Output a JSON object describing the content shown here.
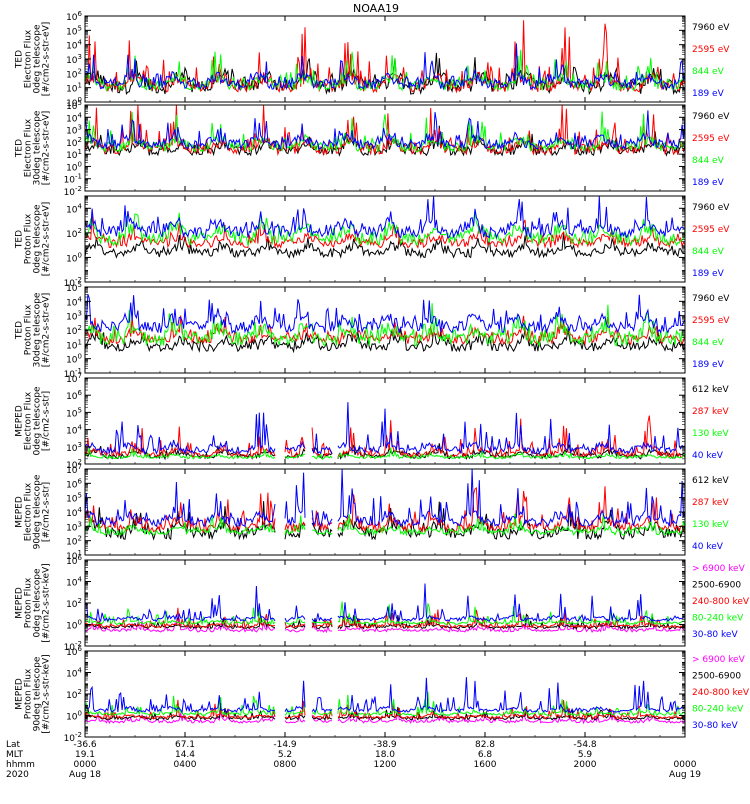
{
  "title": "NOAA19",
  "colors": {
    "black": "#000000",
    "red": "#ff0000",
    "green": "#00ff00",
    "blue": "#0000ff",
    "magenta": "#ff00ff"
  },
  "chart_data": {
    "type": "line",
    "title": "NOAA19",
    "x_axis": {
      "rows": [
        {
          "label": "Lat",
          "values": [
            "-36.6",
            "67.1",
            "-14.9",
            "-38.9",
            "82.8",
            "-54.8"
          ]
        },
        {
          "label": "MLT",
          "values": [
            "19.1",
            "14.4",
            "5.2",
            "18.0",
            "6.8",
            "5.9"
          ]
        },
        {
          "label": "hhmm",
          "values": [
            "0000",
            "0400",
            "0800",
            "1200",
            "1600",
            "2000",
            "0000"
          ]
        },
        {
          "label": "2020",
          "values": [
            "Aug 18",
            "",
            "",
            "",
            "",
            "",
            "Aug 19"
          ]
        }
      ],
      "xlim_hours": [
        0,
        24
      ],
      "tick_hours": [
        0,
        4,
        8,
        12,
        16,
        20,
        24
      ]
    },
    "panels": [
      {
        "ylabel": [
          "TED",
          "Electron Flux",
          "0deg telescope",
          "[#/cm2-s-str-eV]"
        ],
        "yexp_range": [
          0,
          6
        ],
        "tick_labels": [
          "10^0",
          "10^1",
          "10^2",
          "10^3",
          "10^4",
          "10^5",
          "10^6"
        ],
        "series": [
          {
            "name": "7960 eV",
            "color": "#000000",
            "base": 0.55,
            "spread": 1.3,
            "spike_max": 1.6
          },
          {
            "name": "2595 eV",
            "color": "#ff0000",
            "base": 0.7,
            "spread": 1.0,
            "spike_max": 4.2
          },
          {
            "name": "844 eV",
            "color": "#00ff00",
            "base": 0.8,
            "spread": 0.9,
            "spike_max": 2.0
          },
          {
            "name": "189 eV",
            "color": "#0000ff",
            "base": 0.9,
            "spread": 0.9,
            "spike_max": 2.0
          }
        ]
      },
      {
        "ylabel": [
          "TED",
          "Electron Flux",
          "30deg telescope",
          "[#/cm2-s-str-eV]"
        ],
        "yexp_range": [
          -2,
          5
        ],
        "tick_labels": [
          "10^-2",
          "10^-1",
          "10^0",
          "10^1",
          "10^2",
          "10^3",
          "10^4",
          "10^5"
        ],
        "series": [
          {
            "name": "7960 eV",
            "color": "#000000",
            "base": 0.9,
            "spread": 0.9,
            "spike_max": 1.4
          },
          {
            "name": "2595 eV",
            "color": "#ff0000",
            "base": 1.0,
            "spread": 1.0,
            "spike_max": 3.7
          },
          {
            "name": "844 eV",
            "color": "#00ff00",
            "base": 1.2,
            "spread": 1.0,
            "spike_max": 2.4
          },
          {
            "name": "189 eV",
            "color": "#0000ff",
            "base": 1.4,
            "spread": 1.0,
            "spike_max": 2.4
          }
        ]
      },
      {
        "ylabel": [
          "TED",
          "Proton Flux",
          "0deg telescope",
          "[#/cm2-s-str-eV]"
        ],
        "yexp_range": [
          -2,
          5
        ],
        "tick_labels": [
          "10^-2",
          "10^0",
          "10^2",
          "10^4"
        ],
        "major_ticks": [
          -2,
          0,
          2,
          4
        ],
        "series": [
          {
            "name": "7960 eV",
            "color": "#000000",
            "base": 0.0,
            "spread": 0.9,
            "spike_max": 1.0
          },
          {
            "name": "2595 eV",
            "color": "#ff0000",
            "base": 0.8,
            "spread": 0.9,
            "spike_max": 1.4
          },
          {
            "name": "844 eV",
            "color": "#00ff00",
            "base": 1.0,
            "spread": 1.4,
            "spike_max": 1.3
          },
          {
            "name": "189 eV",
            "color": "#0000ff",
            "base": 1.6,
            "spread": 1.2,
            "spike_max": 2.6
          }
        ]
      },
      {
        "ylabel": [
          "TED",
          "Proton Flux",
          "30deg telescope",
          "[#/cm2-s-str-eV]"
        ],
        "yexp_range": [
          -1,
          5
        ],
        "tick_labels": [
          "10^-1",
          "10^0",
          "10^1",
          "10^2",
          "10^3",
          "10^4",
          "10^5"
        ],
        "series": [
          {
            "name": "7960 eV",
            "color": "#000000",
            "base": 0.5,
            "spread": 0.8,
            "spike_max": 1.0
          },
          {
            "name": "2595 eV",
            "color": "#ff0000",
            "base": 1.0,
            "spread": 0.8,
            "spike_max": 1.4
          },
          {
            "name": "844 eV",
            "color": "#00ff00",
            "base": 0.9,
            "spread": 1.2,
            "spike_max": 1.5
          },
          {
            "name": "189 eV",
            "color": "#0000ff",
            "base": 1.8,
            "spread": 1.0,
            "spike_max": 2.6
          }
        ]
      },
      {
        "ylabel": [
          "MEPED",
          "Electron Flux",
          "0deg telescope",
          "[#/cm2-s-str]"
        ],
        "yexp_range": [
          2,
          7
        ],
        "tick_labels": [
          "10^2",
          "10^3",
          "10^4",
          "10^5",
          "10^6",
          "10^7"
        ],
        "series": [
          {
            "name": "612 keV",
            "color": "#000000",
            "base": 2.3,
            "spread": 0.4,
            "spike_max": 0.6
          },
          {
            "name": "287 keV",
            "color": "#ff0000",
            "base": 2.4,
            "spread": 0.4,
            "spike_max": 2.0
          },
          {
            "name": "130 keV",
            "color": "#00ff00",
            "base": 2.3,
            "spread": 0.2,
            "spike_max": 0.4
          },
          {
            "name": "40 keV",
            "color": "#0000ff",
            "base": 2.6,
            "spread": 0.5,
            "spike_max": 2.9
          }
        ]
      },
      {
        "ylabel": [
          "MEPED",
          "Electron Flux",
          "90deg telescope",
          "[#/cm2-s-str]"
        ],
        "yexp_range": [
          1,
          7
        ],
        "tick_labels": [
          "10^1",
          "10^2",
          "10^3",
          "10^4",
          "10^5",
          "10^6",
          "10^7"
        ],
        "series": [
          {
            "name": "612 keV",
            "color": "#000000",
            "base": 2.1,
            "spread": 1.0,
            "spike_max": 1.5
          },
          {
            "name": "287 keV",
            "color": "#ff0000",
            "base": 2.6,
            "spread": 0.8,
            "spike_max": 2.6
          },
          {
            "name": "130 keV",
            "color": "#00ff00",
            "base": 2.4,
            "spread": 0.5,
            "spike_max": 1.2
          },
          {
            "name": "40 keV",
            "color": "#0000ff",
            "base": 3.0,
            "spread": 0.8,
            "spike_max": 3.6
          }
        ]
      },
      {
        "ylabel": [
          "MEPED",
          "Proton Flux",
          "0deg telescope",
          "[#/cm2-s-str-keV]"
        ],
        "yexp_range": [
          -2,
          6
        ],
        "tick_labels": [
          "10^-2",
          "10^0",
          "10^2",
          "10^4",
          "10^6"
        ],
        "major_ticks": [
          -2,
          0,
          2,
          4,
          6
        ],
        "series": [
          {
            "name": "> 6900 keV",
            "color": "#ff00ff",
            "base": -0.7,
            "spread": 0.3,
            "spike_max": 0.9
          },
          {
            "name": "2500-6900",
            "color": "#000000",
            "base": -0.4,
            "spread": 0.3,
            "spike_max": 1.2
          },
          {
            "name": "240-800 keV",
            "color": "#ff0000",
            "base": -0.3,
            "spread": 0.3,
            "spike_max": 1.6
          },
          {
            "name": "80-240 keV",
            "color": "#00ff00",
            "base": 0.0,
            "spread": 0.3,
            "spike_max": 1.9
          },
          {
            "name": "30-80 keV",
            "color": "#0000ff",
            "base": 0.3,
            "spread": 0.4,
            "spike_max": 3.2
          }
        ]
      },
      {
        "ylabel": [
          "MEPED",
          "Proton Flux",
          "90deg telescope",
          "[#/cm2-s-str-keV]"
        ],
        "yexp_range": [
          -2,
          6
        ],
        "tick_labels": [
          "10^-2",
          "10^0",
          "10^2",
          "10^4",
          "10^6"
        ],
        "major_ticks": [
          -2,
          0,
          2,
          4,
          6
        ],
        "series": [
          {
            "name": "> 6900 keV",
            "color": "#ff00ff",
            "base": -0.7,
            "spread": 0.3,
            "spike_max": 0.9
          },
          {
            "name": "2500-6900",
            "color": "#000000",
            "base": -0.4,
            "spread": 0.3,
            "spike_max": 1.2
          },
          {
            "name": "240-800 keV",
            "color": "#ff0000",
            "base": -0.3,
            "spread": 0.3,
            "spike_max": 1.6
          },
          {
            "name": "80-240 keV",
            "color": "#00ff00",
            "base": 0.0,
            "spread": 0.3,
            "spike_max": 1.9
          },
          {
            "name": "30-80 keV",
            "color": "#0000ff",
            "base": 0.3,
            "spread": 0.4,
            "spike_max": 3.2
          }
        ]
      }
    ]
  }
}
